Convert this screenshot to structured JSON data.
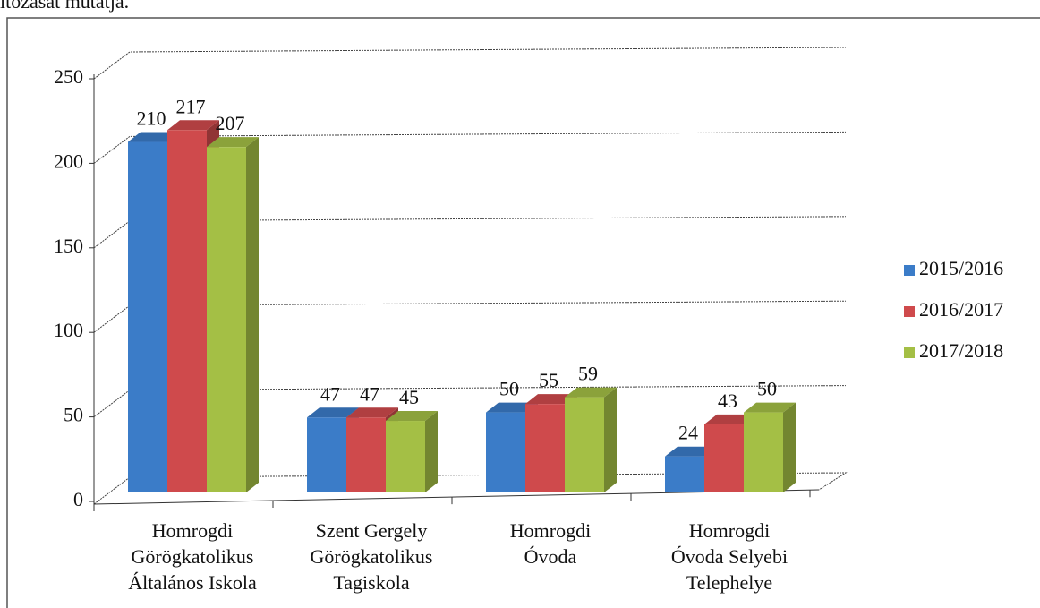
{
  "caption": "ltozását mutatja.",
  "chart_data": {
    "type": "bar3d",
    "categories": [
      "Homrogdi\nGörögkatolikus\nÁltalános Iskola",
      "Szent Gergely\nGörögkatolikus\nTagiskola",
      "Homrogdi\nÓvoda",
      "Homrogdi\nÓvoda Selyebi\nTelephelye"
    ],
    "series": [
      {
        "name": "2015/2016",
        "color": "#3b7cc8",
        "values": [
          210,
          47,
          50,
          24
        ]
      },
      {
        "name": "2016/2017",
        "color": "#cf4a4c",
        "values": [
          217,
          47,
          55,
          43
        ]
      },
      {
        "name": "2017/2018",
        "color": "#a4bf45",
        "values": [
          207,
          45,
          59,
          50
        ]
      }
    ],
    "ylim": [
      0,
      250
    ],
    "yticks": [
      0,
      50,
      100,
      150,
      200,
      250
    ],
    "grid": true,
    "legend": "right"
  }
}
